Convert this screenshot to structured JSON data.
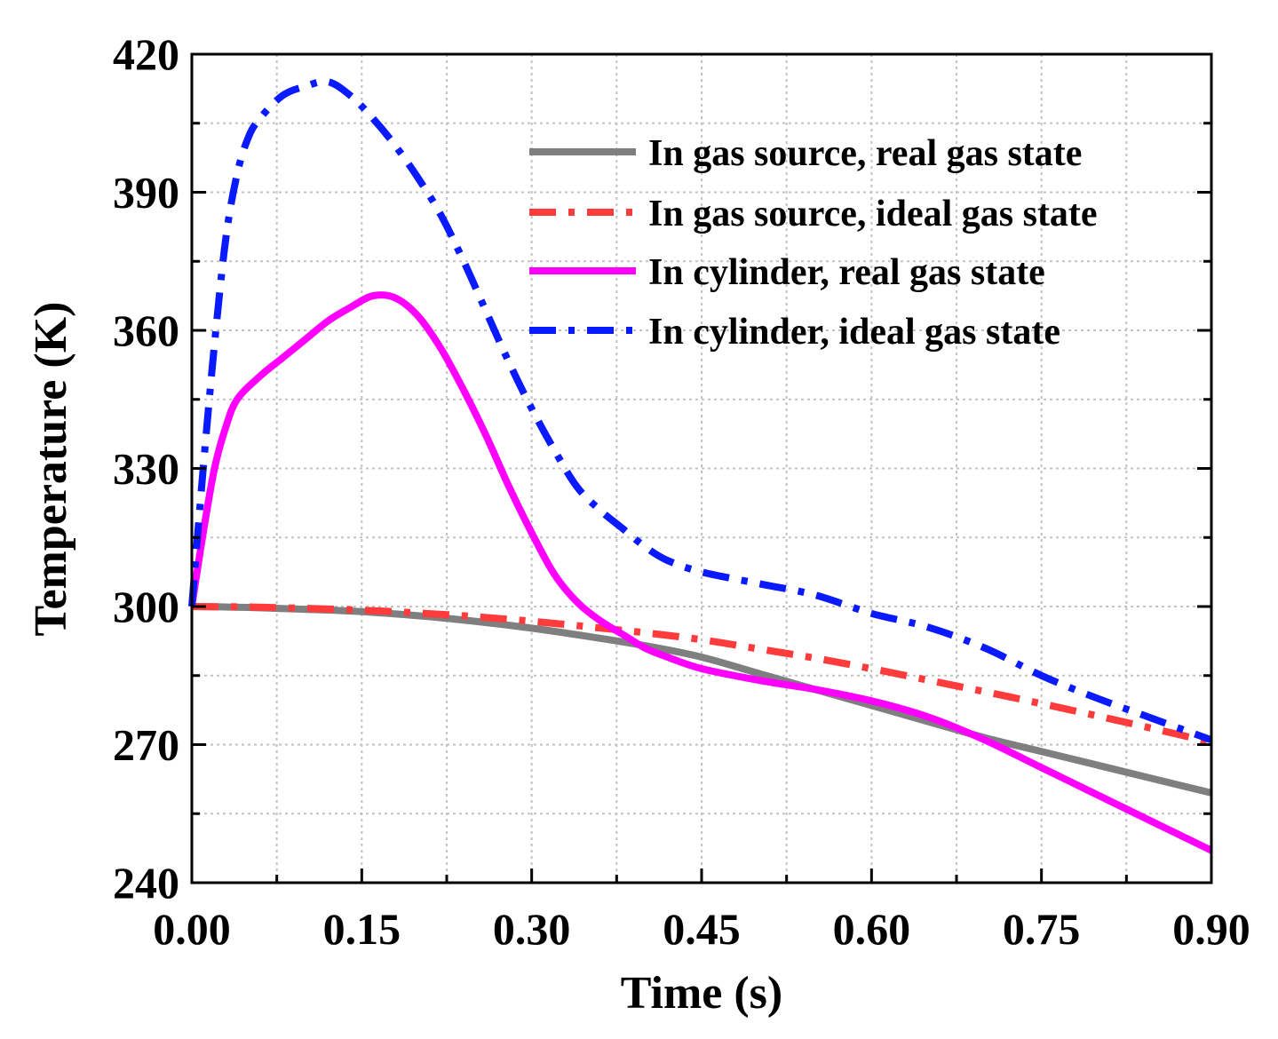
{
  "chart_data": {
    "type": "line",
    "title": "",
    "xlabel": "Time (s)",
    "ylabel": "Temperature  (K)",
    "xlim": [
      0,
      0.9
    ],
    "ylim": [
      240,
      420
    ],
    "xticks": [
      "0.00",
      "0.15",
      "0.30",
      "0.45",
      "0.60",
      "0.75",
      "0.90"
    ],
    "yticks": [
      "240",
      "270",
      "300",
      "330",
      "360",
      "390",
      "420"
    ],
    "grid": true,
    "legend_position": "top-right",
    "series": [
      {
        "name": "In gas source, real gas state",
        "color": "#7f7f7f",
        "style": "solid",
        "x": [
          0,
          0.05,
          0.1,
          0.15,
          0.2,
          0.25,
          0.3,
          0.35,
          0.4,
          0.45,
          0.5,
          0.55,
          0.6,
          0.65,
          0.7,
          0.75,
          0.8,
          0.85,
          0.9
        ],
        "y": [
          300,
          299.8,
          299.4,
          298.9,
          298.0,
          296.8,
          295.3,
          293.5,
          291.5,
          289.0,
          285.5,
          282.0,
          278.5,
          275.0,
          271.5,
          268.5,
          265.5,
          262.5,
          259.5
        ]
      },
      {
        "name": "In gas source, ideal gas state",
        "color": "#ff3b3b",
        "style": "dashdot",
        "x": [
          0,
          0.05,
          0.1,
          0.15,
          0.2,
          0.25,
          0.3,
          0.35,
          0.4,
          0.45,
          0.5,
          0.55,
          0.6,
          0.65,
          0.7,
          0.75,
          0.8,
          0.85,
          0.9
        ],
        "y": [
          300,
          299.9,
          299.6,
          299.2,
          298.6,
          297.8,
          296.8,
          295.6,
          294.3,
          292.8,
          290.8,
          288.8,
          286.5,
          284.0,
          281.5,
          278.9,
          276.2,
          273.4,
          270.5
        ]
      },
      {
        "name": "In cylinder, real gas state",
        "color": "#ff00ff",
        "style": "solid",
        "x": [
          0,
          0.01,
          0.02,
          0.03,
          0.04,
          0.06,
          0.08,
          0.1,
          0.12,
          0.14,
          0.16,
          0.18,
          0.2,
          0.22,
          0.24,
          0.26,
          0.28,
          0.3,
          0.32,
          0.34,
          0.36,
          0.38,
          0.4,
          0.42,
          0.45,
          0.5,
          0.55,
          0.6,
          0.65,
          0.7,
          0.75,
          0.8,
          0.85,
          0.9
        ],
        "y": [
          300,
          316,
          330,
          339,
          345,
          350,
          354,
          358,
          362,
          365,
          367.5,
          367,
          363,
          356,
          347,
          337,
          326,
          316,
          307,
          301,
          297,
          294,
          291,
          289,
          286.5,
          284,
          282,
          279.5,
          276,
          271,
          265,
          259,
          253,
          247
        ]
      },
      {
        "name": "In cylinder, ideal gas state",
        "color": "#0a1aff",
        "style": "dashdot",
        "x": [
          0,
          0.01,
          0.02,
          0.03,
          0.04,
          0.05,
          0.06,
          0.08,
          0.1,
          0.12,
          0.14,
          0.16,
          0.18,
          0.2,
          0.22,
          0.24,
          0.26,
          0.28,
          0.3,
          0.32,
          0.34,
          0.36,
          0.38,
          0.4,
          0.42,
          0.45,
          0.5,
          0.55,
          0.6,
          0.65,
          0.7,
          0.75,
          0.8,
          0.85,
          0.9
        ],
        "y": [
          300,
          330,
          357,
          380,
          394,
          402,
          406,
          411,
          413,
          414,
          411,
          406,
          400,
          393,
          385,
          375,
          364,
          353,
          343,
          334,
          326,
          321,
          317,
          313,
          310,
          307.5,
          305,
          302.5,
          298.5,
          295.5,
          291,
          285,
          280,
          275.5,
          271
        ]
      }
    ]
  }
}
